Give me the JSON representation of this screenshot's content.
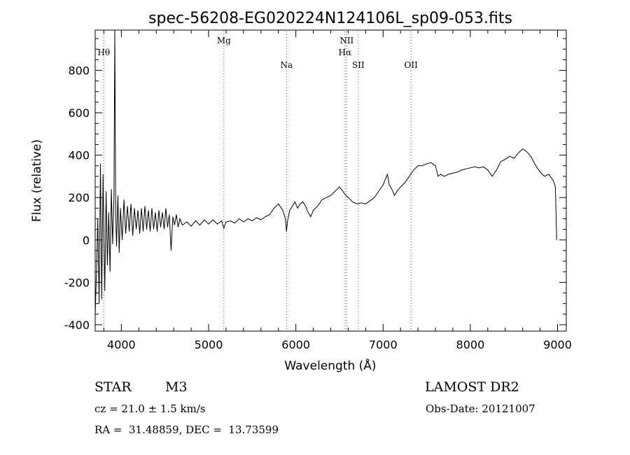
{
  "chart_data": {
    "type": "line",
    "title": "spec-56208-EG020224N124106L_sp09-053.fits",
    "xlabel": "Wavelength (Å)",
    "ylabel": "Flux (relative)",
    "xlim": [
      3700,
      9100
    ],
    "ylim": [
      -430,
      990
    ],
    "xticks": [
      4000,
      5000,
      6000,
      7000,
      8000,
      9000
    ],
    "yticks": [
      -400,
      -200,
      0,
      200,
      400,
      600,
      800
    ],
    "grid": false,
    "line_color": "#000000",
    "marker_color": "#ff0000",
    "spectral_lines": [
      {
        "label": "Hθ",
        "x": 3798,
        "level": "top"
      },
      {
        "label": "Mg",
        "x": 5175,
        "level": "upper"
      },
      {
        "label": "Na",
        "x": 5893,
        "level": "lower"
      },
      {
        "label": "NII",
        "x": 6583,
        "level": "upper"
      },
      {
        "label": "Hα",
        "x": 6563,
        "level": "middle"
      },
      {
        "label": "SII",
        "x": 6716,
        "level": "lower"
      },
      {
        "label": "OII",
        "x": 7320,
        "level": "lower"
      }
    ],
    "series": [
      {
        "values": [
          [
            3700,
            -350
          ],
          [
            3715,
            -150
          ],
          [
            3730,
            100
          ],
          [
            3745,
            -300
          ],
          [
            3760,
            360
          ],
          [
            3775,
            -280
          ],
          [
            3790,
            310
          ],
          [
            3800,
            0
          ],
          [
            3810,
            -240
          ],
          [
            3825,
            230
          ],
          [
            3840,
            -120
          ],
          [
            3855,
            130
          ],
          [
            3870,
            -150
          ],
          [
            3885,
            240
          ],
          [
            3900,
            -20
          ],
          [
            3915,
            200
          ],
          [
            3925,
            990
          ],
          [
            3935,
            120
          ],
          [
            3945,
            -30
          ],
          [
            3960,
            210
          ],
          [
            3975,
            -60
          ],
          [
            3990,
            150
          ],
          [
            4010,
            0
          ],
          [
            4030,
            190
          ],
          [
            4050,
            30
          ],
          [
            4070,
            160
          ],
          [
            4090,
            40
          ],
          [
            4110,
            170
          ],
          [
            4130,
            20
          ],
          [
            4150,
            150
          ],
          [
            4170,
            50
          ],
          [
            4190,
            140
          ],
          [
            4210,
            30
          ],
          [
            4230,
            150
          ],
          [
            4250,
            40
          ],
          [
            4270,
            160
          ],
          [
            4290,
            50
          ],
          [
            4310,
            140
          ],
          [
            4330,
            40
          ],
          [
            4350,
            150
          ],
          [
            4370,
            50
          ],
          [
            4390,
            130
          ],
          [
            4410,
            40
          ],
          [
            4430,
            140
          ],
          [
            4450,
            60
          ],
          [
            4470,
            130
          ],
          [
            4490,
            50
          ],
          [
            4510,
            150
          ],
          [
            4530,
            60
          ],
          [
            4550,
            120
          ],
          [
            4570,
            -50
          ],
          [
            4590,
            110
          ],
          [
            4610,
            70
          ],
          [
            4630,
            120
          ],
          [
            4650,
            60
          ],
          [
            4670,
            100
          ],
          [
            4700,
            70
          ],
          [
            4750,
            85
          ],
          [
            4800,
            65
          ],
          [
            4850,
            90
          ],
          [
            4900,
            70
          ],
          [
            4950,
            95
          ],
          [
            5000,
            75
          ],
          [
            5050,
            95
          ],
          [
            5100,
            75
          ],
          [
            5150,
            90
          ],
          [
            5175,
            55
          ],
          [
            5200,
            85
          ],
          [
            5250,
            90
          ],
          [
            5300,
            80
          ],
          [
            5350,
            100
          ],
          [
            5400,
            85
          ],
          [
            5450,
            100
          ],
          [
            5500,
            90
          ],
          [
            5550,
            105
          ],
          [
            5600,
            95
          ],
          [
            5650,
            110
          ],
          [
            5700,
            120
          ],
          [
            5750,
            150
          ],
          [
            5800,
            170
          ],
          [
            5850,
            140
          ],
          [
            5880,
            100
          ],
          [
            5893,
            40
          ],
          [
            5905,
            90
          ],
          [
            5930,
            140
          ],
          [
            5960,
            160
          ],
          [
            5990,
            180
          ],
          [
            6020,
            150
          ],
          [
            6050,
            170
          ],
          [
            6080,
            180
          ],
          [
            6110,
            160
          ],
          [
            6140,
            130
          ],
          [
            6170,
            110
          ],
          [
            6200,
            140
          ],
          [
            6250,
            160
          ],
          [
            6300,
            190
          ],
          [
            6350,
            200
          ],
          [
            6400,
            210
          ],
          [
            6450,
            230
          ],
          [
            6500,
            250
          ],
          [
            6530,
            235
          ],
          [
            6563,
            215
          ],
          [
            6600,
            200
          ],
          [
            6650,
            180
          ],
          [
            6700,
            170
          ],
          [
            6750,
            175
          ],
          [
            6800,
            170
          ],
          [
            6850,
            185
          ],
          [
            6900,
            200
          ],
          [
            6950,
            230
          ],
          [
            7000,
            260
          ],
          [
            7030,
            290
          ],
          [
            7050,
            310
          ],
          [
            7070,
            260
          ],
          [
            7100,
            240
          ],
          [
            7130,
            210
          ],
          [
            7160,
            230
          ],
          [
            7200,
            250
          ],
          [
            7250,
            270
          ],
          [
            7300,
            300
          ],
          [
            7350,
            330
          ],
          [
            7400,
            350
          ],
          [
            7450,
            350
          ],
          [
            7500,
            360
          ],
          [
            7550,
            365
          ],
          [
            7600,
            350
          ],
          [
            7630,
            300
          ],
          [
            7660,
            310
          ],
          [
            7700,
            300
          ],
          [
            7750,
            310
          ],
          [
            7800,
            315
          ],
          [
            7850,
            320
          ],
          [
            7900,
            330
          ],
          [
            7950,
            335
          ],
          [
            8000,
            340
          ],
          [
            8050,
            345
          ],
          [
            8100,
            340
          ],
          [
            8150,
            345
          ],
          [
            8200,
            330
          ],
          [
            8250,
            300
          ],
          [
            8300,
            330
          ],
          [
            8350,
            370
          ],
          [
            8400,
            380
          ],
          [
            8450,
            395
          ],
          [
            8500,
            385
          ],
          [
            8550,
            410
          ],
          [
            8600,
            430
          ],
          [
            8650,
            415
          ],
          [
            8700,
            390
          ],
          [
            8750,
            350
          ],
          [
            8800,
            320
          ],
          [
            8850,
            300
          ],
          [
            8900,
            310
          ],
          [
            8950,
            280
          ],
          [
            8975,
            250
          ],
          [
            8990,
            0
          ]
        ]
      }
    ]
  },
  "info": {
    "object_type": "STAR",
    "subclass": "M3",
    "survey": "LAMOST DR2",
    "cz": "cz = 21.0 ± 1.5 km/s",
    "obs_date": "Obs-Date: 20121007",
    "coords": "RA =  31.48859, DEC =  13.73599"
  }
}
